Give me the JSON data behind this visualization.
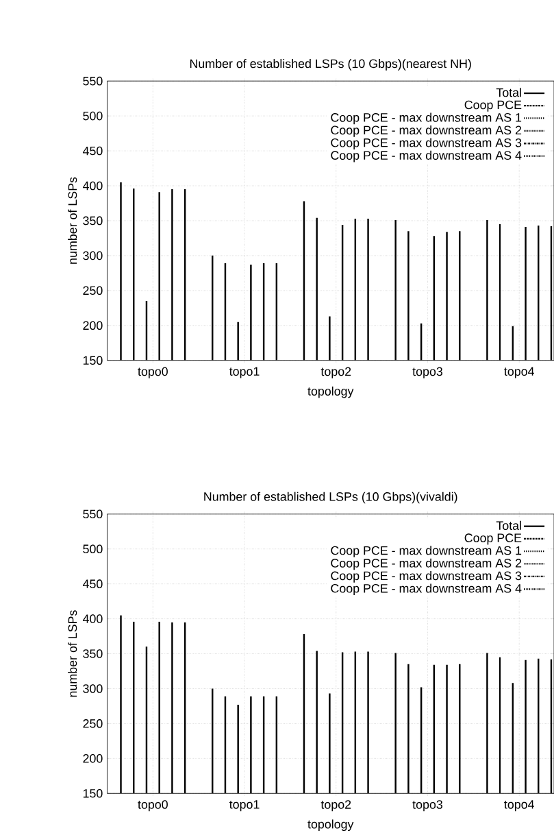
{
  "chart_data": [
    {
      "type": "bar",
      "title": "Number of established LSPs (10 Gbps)(nearest NH)",
      "xlabel": "topology",
      "ylabel": "number of LSPs",
      "categories": [
        "topo0",
        "topo1",
        "topo2",
        "topo3",
        "topo4"
      ],
      "series": [
        {
          "name": "Total",
          "color": "#000000",
          "line_style": "solid",
          "values": [
            405,
            300,
            378,
            351,
            351
          ]
        },
        {
          "name": "Coop PCE",
          "color": "#000000",
          "line_style": "dashed",
          "values": [
            396,
            289,
            354,
            335,
            345
          ]
        },
        {
          "name": "Coop PCE - max downstream AS 1",
          "color": "#000000",
          "line_style": "dotted",
          "values": [
            235,
            205,
            213,
            203,
            199
          ]
        },
        {
          "name": "Coop PCE - max downstream AS 2",
          "color": "#000000",
          "line_style": "densely dotted",
          "values": [
            391,
            287,
            344,
            328,
            341
          ]
        },
        {
          "name": "Coop PCE - max downstream AS 3",
          "color": "#000000",
          "line_style": "dashdot",
          "values": [
            395,
            289,
            353,
            334,
            343
          ]
        },
        {
          "name": "Coop PCE - max downstream AS 4",
          "color": "#000000",
          "line_style": "dashdotdot",
          "values": [
            395,
            289,
            353,
            335,
            342
          ]
        }
      ],
      "ylim": [
        150,
        550
      ],
      "yticks": [
        150,
        200,
        250,
        300,
        350,
        400,
        450,
        500,
        550
      ],
      "grid": true,
      "legend": "top right"
    },
    {
      "type": "bar",
      "title": "Number of established LSPs (10 Gbps)(vivaldi)",
      "xlabel": "topology",
      "ylabel": "number of LSPs",
      "categories": [
        "topo0",
        "topo1",
        "topo2",
        "topo3",
        "topo4"
      ],
      "series": [
        {
          "name": "Total",
          "color": "#000000",
          "line_style": "solid",
          "values": [
            405,
            300,
            378,
            351,
            351
          ]
        },
        {
          "name": "Coop PCE",
          "color": "#000000",
          "line_style": "dashed",
          "values": [
            396,
            289,
            354,
            335,
            345
          ]
        },
        {
          "name": "Coop PCE - max downstream AS 1",
          "color": "#000000",
          "line_style": "dotted",
          "values": [
            360,
            277,
            293,
            302,
            308
          ]
        },
        {
          "name": "Coop PCE - max downstream AS 2",
          "color": "#000000",
          "line_style": "densely dotted",
          "values": [
            396,
            289,
            352,
            334,
            341
          ]
        },
        {
          "name": "Coop PCE - max downstream AS 3",
          "color": "#000000",
          "line_style": "dashdot",
          "values": [
            395,
            289,
            353,
            334,
            343
          ]
        },
        {
          "name": "Coop PCE - max downstream AS 4",
          "color": "#000000",
          "line_style": "dashdotdot",
          "values": [
            395,
            289,
            353,
            335,
            342
          ]
        }
      ],
      "ylim": [
        150,
        550
      ],
      "yticks": [
        150,
        200,
        250,
        300,
        350,
        400,
        450,
        500,
        550
      ],
      "grid": true,
      "legend": "top right"
    }
  ]
}
